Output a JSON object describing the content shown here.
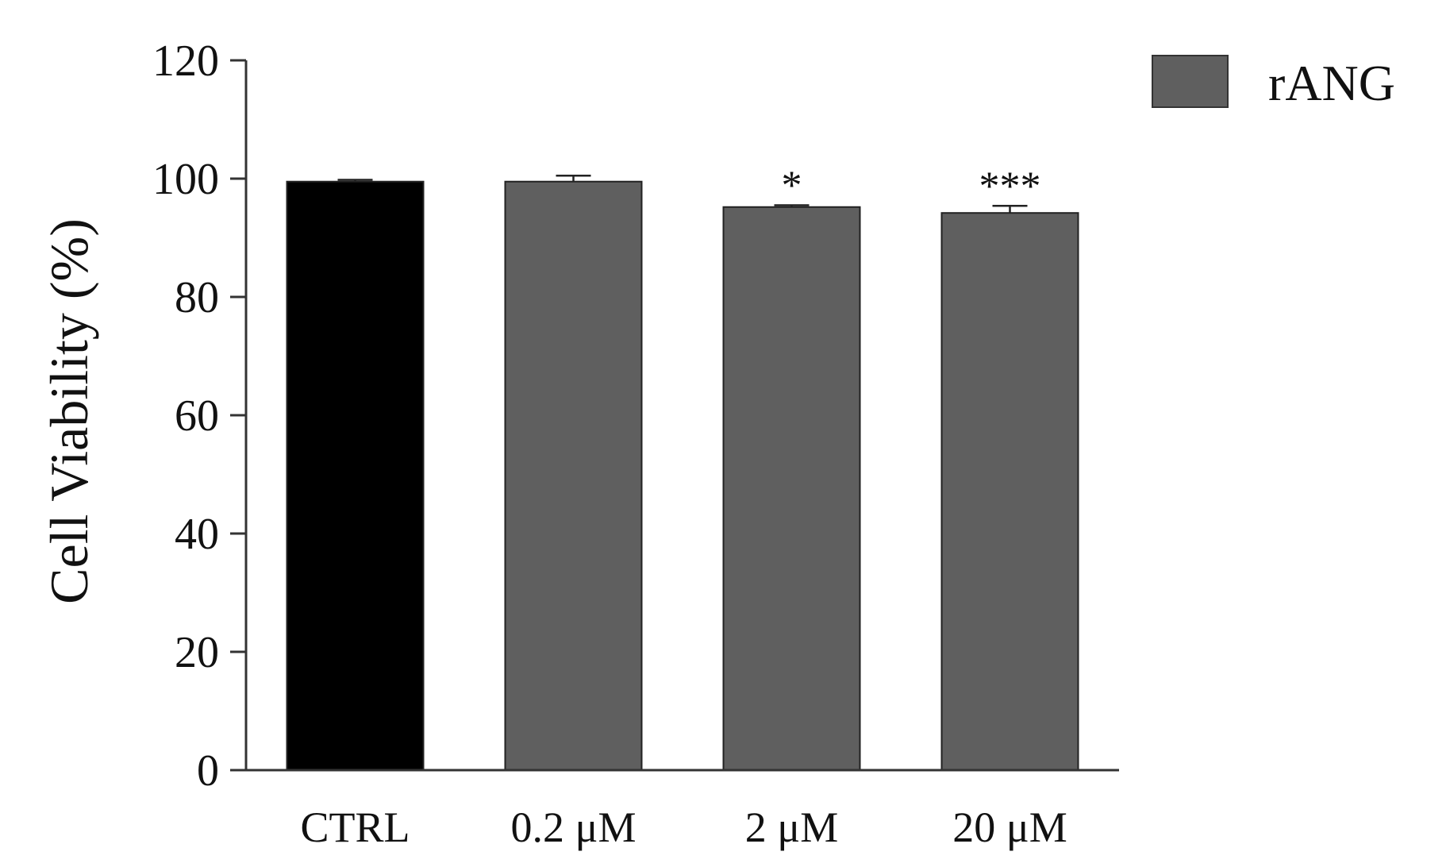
{
  "chart_data": {
    "type": "bar",
    "title": "",
    "xlabel": "",
    "ylabel": "Cell Viability (%)",
    "ylim": [
      0,
      120
    ],
    "yticks": [
      0,
      20,
      40,
      60,
      80,
      100,
      120
    ],
    "categories": [
      "CTRL",
      "0.2 μM",
      "2 μM",
      "20 μM"
    ],
    "series": [
      {
        "name": "rANG",
        "values": [
          99.5,
          99.5,
          95.2,
          94.2
        ],
        "errors": [
          0.3,
          1.0,
          0.3,
          1.2
        ],
        "significance": [
          "",
          "",
          "*",
          "***"
        ],
        "bar_colors": [
          "#000000",
          "#5f5f5f",
          "#5f5f5f",
          "#5f5f5f"
        ]
      }
    ],
    "legend": {
      "position": "top-right",
      "label": "rANG",
      "color": "#5f5f5f"
    },
    "grid": false
  }
}
